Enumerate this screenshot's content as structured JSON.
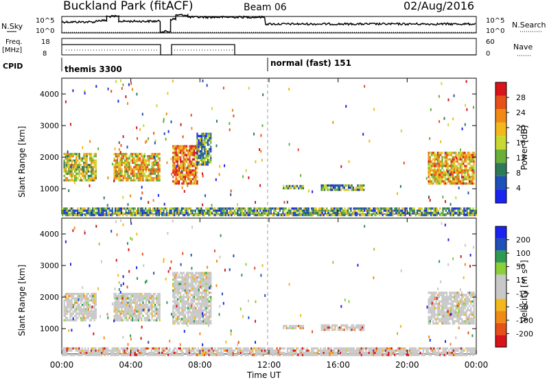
{
  "header": {
    "title": "Buckland Park (fitACF)",
    "beam": "Beam 06",
    "date": "02/Aug/2016"
  },
  "strip": {
    "nsky_label": "N.Sky",
    "nsky_top": "10^5",
    "nsky_bottom": "10^0",
    "nsearch_label": "N.Search",
    "freq_label": "Freq.",
    "freq_unit": "[MHz]",
    "freq_top": "18",
    "freq_bottom": "8",
    "nave_label": "Nave",
    "nave_top": "60",
    "nave_bottom": "0",
    "cpid_label": "CPID",
    "cpid_1": "themis 3300",
    "cpid_2": "normal (fast) 151"
  },
  "axes": {
    "ylabel": "Slant Range [km]",
    "yticks": [
      "1000",
      "2000",
      "3000",
      "4000"
    ],
    "xlabel": "Time UT",
    "xticks": [
      "00:00",
      "04:00",
      "08:00",
      "12:00",
      "16:00",
      "20:00",
      "00:00"
    ]
  },
  "colors": {
    "power": [
      "#1a24f0",
      "#1f4fb8",
      "#2e7a58",
      "#6aaf3a",
      "#c8d830",
      "#f2b81c",
      "#f08a14",
      "#e8501a",
      "#d8141a"
    ],
    "velocity": [
      "#d8141a",
      "#e8501a",
      "#f08a14",
      "#f2b81c",
      "#c8c8c8",
      "#c8c8c8",
      "#8ccf38",
      "#2e9a52",
      "#1f4fb8",
      "#1a24f0"
    ]
  },
  "chart_data": [
    {
      "type": "heatmap",
      "name_panel": "power",
      "ylabel": "Slant Range [km]",
      "xlabel": "Time UT",
      "xlim_hours": [
        0,
        24
      ],
      "ylim": [
        200,
        4500
      ],
      "colorbar_label": "Power [dB]",
      "colorbar_ticks": [
        "4",
        "8",
        "12",
        "16",
        "20",
        "24",
        "28"
      ],
      "regions": [
        {
          "t0": 0.1,
          "t1": 2.0,
          "r0": 1300,
          "r1": 2200,
          "level": 0.5
        },
        {
          "t0": 3.0,
          "t1": 5.7,
          "r0": 1300,
          "r1": 2200,
          "level": 0.6
        },
        {
          "t0": 6.4,
          "t1": 7.8,
          "r0": 1200,
          "r1": 2400,
          "level": 0.75
        },
        {
          "t0": 7.8,
          "t1": 8.6,
          "r0": 1800,
          "r1": 2800,
          "level": 0.3
        },
        {
          "t0": 12.8,
          "t1": 14.0,
          "r0": 1050,
          "r1": 1150,
          "level": 0.35
        },
        {
          "t0": 15.0,
          "t1": 17.5,
          "r0": 1000,
          "r1": 1150,
          "level": 0.3
        },
        {
          "t0": 21.2,
          "t1": 23.9,
          "r0": 1200,
          "r1": 2200,
          "level": 0.65
        },
        {
          "t0": 0.0,
          "t1": 24.0,
          "r0": 200,
          "r1": 450,
          "level": 0.35
        }
      ]
    },
    {
      "type": "heatmap",
      "name_panel": "velocity",
      "ylabel": "Slant Range [km]",
      "xlabel": "Time UT",
      "xlim_hours": [
        0,
        24
      ],
      "ylim": [
        200,
        4500
      ],
      "colorbar_label": "Velocity [m s^-1]",
      "colorbar_ticks": [
        "-200",
        "-100",
        "-50",
        "-15",
        "15",
        "50",
        "100",
        "200"
      ],
      "regions": [
        {
          "t0": 0.1,
          "t1": 2.0,
          "r0": 1300,
          "r1": 2200,
          "level": 0.5
        },
        {
          "t0": 3.0,
          "t1": 5.7,
          "r0": 1300,
          "r1": 2200,
          "level": 0.5
        },
        {
          "t0": 6.4,
          "t1": 8.6,
          "r0": 1200,
          "r1": 2800,
          "level": 0.5
        },
        {
          "t0": 12.8,
          "t1": 14.0,
          "r0": 1050,
          "r1": 1150,
          "level": 0.4
        },
        {
          "t0": 15.0,
          "t1": 17.5,
          "r0": 1000,
          "r1": 1150,
          "level": 0.3
        },
        {
          "t0": 21.2,
          "t1": 23.9,
          "r0": 1200,
          "r1": 2200,
          "level": 0.5
        },
        {
          "t0": 0.0,
          "t1": 24.0,
          "r0": 200,
          "r1": 450,
          "level": 0.2
        }
      ]
    }
  ]
}
